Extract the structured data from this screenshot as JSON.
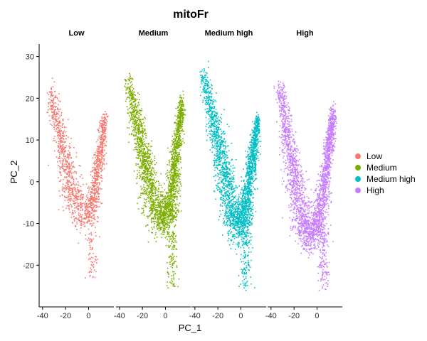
{
  "chart_data": {
    "type": "scatter",
    "title": "mitoFr",
    "xlabel": "PC_1",
    "ylabel": "PC_2",
    "xlim": [
      -43,
      22
    ],
    "ylim": [
      -30,
      33
    ],
    "x_ticks": [
      -40,
      -20,
      0
    ],
    "y_ticks": [
      -20,
      -10,
      0,
      10,
      20,
      30
    ],
    "grid": false,
    "legend_position": "right",
    "facets": [
      {
        "label": "Low",
        "color": "#F8766D",
        "left_arm": {
          "top": [
            -33,
            22
          ],
          "bottom": [
            -12,
            -6
          ]
        },
        "right_arm": {
          "bottom": [
            2,
            -8
          ],
          "top": [
            14,
            16
          ]
        },
        "tail": {
          "x": 2,
          "y_min": -23
        },
        "points": 1500
      },
      {
        "label": "Medium",
        "color": "#7CAE00",
        "left_arm": {
          "top": [
            -33,
            24
          ],
          "bottom": [
            -8,
            -8
          ]
        },
        "right_arm": {
          "bottom": [
            2,
            -9
          ],
          "top": [
            14,
            19
          ]
        },
        "tail": {
          "x": 5,
          "y_min": -26
        },
        "points": 2600
      },
      {
        "label": "Medium high",
        "color": "#00BFC4",
        "left_arm": {
          "top": [
            -33,
            26
          ],
          "bottom": [
            -6,
            -10
          ]
        },
        "right_arm": {
          "bottom": [
            2,
            -10
          ],
          "top": [
            14,
            15
          ]
        },
        "tail": {
          "x": 4,
          "y_min": -26
        },
        "points": 2600
      },
      {
        "label": "High",
        "color": "#C77CFF",
        "left_arm": {
          "top": [
            -33,
            23
          ],
          "bottom": [
            -12,
            -12
          ]
        },
        "right_arm": {
          "bottom": [
            0,
            -12
          ],
          "top": [
            14,
            17
          ]
        },
        "tail": {
          "x": 5,
          "y_min": -26
        },
        "points": 2600
      }
    ],
    "legend": [
      {
        "label": "Low",
        "color": "#F8766D"
      },
      {
        "label": "Medium",
        "color": "#7CAE00"
      },
      {
        "label": "Medium high",
        "color": "#00BFC4"
      },
      {
        "label": "High",
        "color": "#C77CFF"
      }
    ]
  }
}
